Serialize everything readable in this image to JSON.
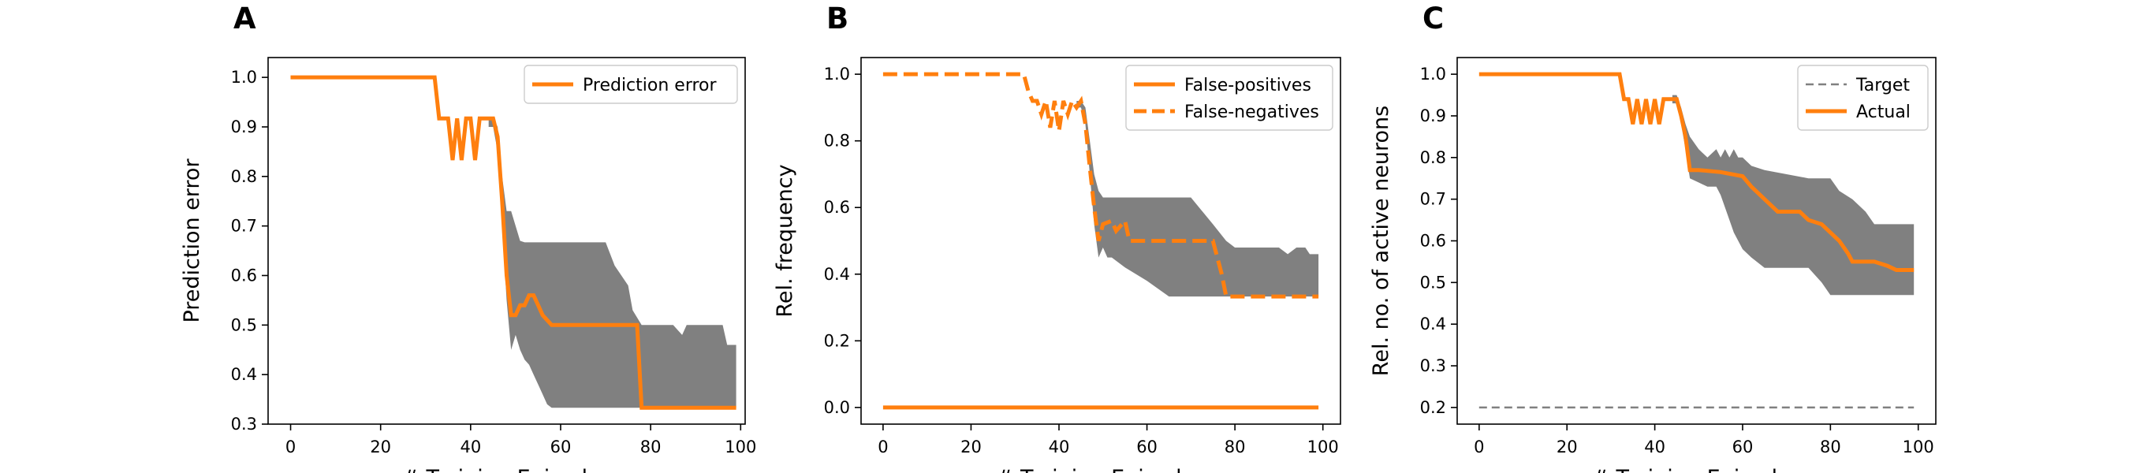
{
  "chart_data": [
    {
      "type": "line",
      "panel_label": "A",
      "xlabel": "# Training Episodes",
      "ylabel": "Prediction error",
      "xlim": [
        -5,
        101
      ],
      "ylim": [
        0.3,
        1.04
      ],
      "xticks": [
        0,
        20,
        40,
        60,
        80,
        100
      ],
      "xtick_labels": [
        "0",
        "20",
        "40",
        "60",
        "80",
        "100"
      ],
      "yticks": [
        0.3,
        0.4,
        0.5,
        0.6,
        0.7,
        0.8,
        0.9,
        1.0
      ],
      "ytick_labels": [
        "0.3",
        "0.4",
        "0.5",
        "0.6",
        "0.7",
        "0.8",
        "0.9",
        "1.0"
      ],
      "legend_position": "upper-right",
      "series": [
        {
          "name": "Prediction error",
          "kind": "line",
          "style": "solid",
          "x": [
            0,
            32,
            33,
            35,
            36,
            37,
            38,
            39,
            40,
            41,
            42,
            43,
            44,
            45,
            46,
            47,
            48,
            49,
            50,
            51,
            52,
            53,
            54,
            55,
            56,
            58,
            60,
            70,
            75,
            77,
            78,
            99
          ],
          "y": [
            1.0,
            1.0,
            0.917,
            0.917,
            0.833,
            0.917,
            0.833,
            0.917,
            0.917,
            0.833,
            0.917,
            0.917,
            0.917,
            0.917,
            0.88,
            0.75,
            0.6,
            0.52,
            0.52,
            0.54,
            0.54,
            0.56,
            0.56,
            0.54,
            0.52,
            0.5,
            0.5,
            0.5,
            0.5,
            0.5,
            0.333,
            0.333
          ]
        }
      ],
      "band": {
        "x": [
          44,
          45,
          46,
          47,
          48,
          49,
          50,
          51,
          52,
          53,
          54,
          55,
          56,
          57,
          58,
          60,
          62,
          65,
          70,
          72,
          75,
          76,
          78,
          80,
          85,
          87,
          88,
          90,
          92,
          94,
          96,
          97,
          98,
          99
        ],
        "upper": [
          0.92,
          0.92,
          0.9,
          0.8,
          0.73,
          0.73,
          0.7,
          0.67,
          0.667,
          0.667,
          0.667,
          0.667,
          0.667,
          0.667,
          0.667,
          0.667,
          0.667,
          0.667,
          0.667,
          0.62,
          0.58,
          0.53,
          0.5,
          0.5,
          0.5,
          0.48,
          0.5,
          0.5,
          0.5,
          0.5,
          0.5,
          0.46,
          0.46,
          0.46
        ],
        "lower": [
          0.9,
          0.9,
          0.85,
          0.7,
          0.55,
          0.45,
          0.48,
          0.45,
          0.43,
          0.42,
          0.4,
          0.38,
          0.36,
          0.34,
          0.333,
          0.333,
          0.333,
          0.333,
          0.333,
          0.333,
          0.333,
          0.333,
          0.333,
          0.333,
          0.333,
          0.333,
          0.333,
          0.333,
          0.333,
          0.333,
          0.333,
          0.333,
          0.333,
          0.333
        ]
      }
    },
    {
      "type": "line",
      "panel_label": "B",
      "xlabel": "# Training Episodes",
      "ylabel": "Rel. frequency",
      "xlim": [
        -5,
        104
      ],
      "ylim": [
        -0.05,
        1.05
      ],
      "xticks": [
        0,
        20,
        40,
        60,
        80,
        100
      ],
      "xtick_labels": [
        "0",
        "20",
        "40",
        "60",
        "80",
        "100"
      ],
      "yticks": [
        0.0,
        0.2,
        0.4,
        0.6,
        0.8,
        1.0
      ],
      "ytick_labels": [
        "0.0",
        "0.2",
        "0.4",
        "0.6",
        "0.8",
        "1.0"
      ],
      "legend_position": "upper-right",
      "series": [
        {
          "name": "False-positives",
          "kind": "line",
          "style": "solid",
          "x": [
            0,
            99
          ],
          "y": [
            0.0,
            0.0
          ]
        },
        {
          "name": "False-negatives",
          "kind": "line",
          "style": "dashed",
          "x": [
            0,
            32,
            33,
            34,
            35,
            36,
            37,
            38,
            39,
            40,
            41,
            42,
            43,
            44,
            45,
            46,
            47,
            48,
            49,
            50,
            52,
            53,
            55,
            56,
            60,
            70,
            75,
            77,
            78,
            80,
            85,
            90,
            95,
            99
          ],
          "y": [
            1.0,
            1.0,
            0.95,
            0.92,
            0.92,
            0.88,
            0.92,
            0.84,
            0.92,
            0.83,
            0.92,
            0.88,
            0.92,
            0.9,
            0.92,
            0.85,
            0.72,
            0.6,
            0.5,
            0.55,
            0.56,
            0.53,
            0.56,
            0.5,
            0.5,
            0.5,
            0.5,
            0.4,
            0.333,
            0.333,
            0.333,
            0.333,
            0.333,
            0.333
          ]
        }
      ],
      "band": {
        "x": [
          44,
          45,
          46,
          47,
          48,
          49,
          50,
          51,
          52,
          55,
          60,
          65,
          70,
          75,
          78,
          80,
          85,
          90,
          92,
          94,
          96,
          97,
          98,
          99
        ],
        "upper": [
          0.92,
          0.92,
          0.9,
          0.8,
          0.7,
          0.65,
          0.63,
          0.63,
          0.63,
          0.63,
          0.63,
          0.63,
          0.63,
          0.55,
          0.5,
          0.48,
          0.48,
          0.48,
          0.46,
          0.48,
          0.48,
          0.46,
          0.46,
          0.46
        ],
        "lower": [
          0.9,
          0.9,
          0.85,
          0.7,
          0.55,
          0.45,
          0.48,
          0.45,
          0.45,
          0.42,
          0.38,
          0.333,
          0.333,
          0.333,
          0.333,
          0.333,
          0.333,
          0.333,
          0.333,
          0.333,
          0.333,
          0.333,
          0.333,
          0.333
        ]
      }
    },
    {
      "type": "line",
      "panel_label": "C",
      "xlabel": "# Training Episodes",
      "ylabel": "Rel. no. of active neurons",
      "xlim": [
        -5,
        104
      ],
      "ylim": [
        0.16,
        1.04
      ],
      "xticks": [
        0,
        20,
        40,
        60,
        80,
        100
      ],
      "xtick_labels": [
        "0",
        "20",
        "40",
        "60",
        "80",
        "100"
      ],
      "yticks": [
        0.2,
        0.3,
        0.4,
        0.5,
        0.6,
        0.7,
        0.8,
        0.9,
        1.0
      ],
      "ytick_labels": [
        "0.2",
        "0.3",
        "0.4",
        "0.5",
        "0.6",
        "0.7",
        "0.8",
        "0.9",
        "1.0"
      ],
      "legend_position": "upper-right",
      "series": [
        {
          "name": "Target",
          "kind": "line",
          "style": "dashed",
          "x": [
            0,
            99
          ],
          "y": [
            0.2,
            0.2
          ]
        },
        {
          "name": "Actual",
          "kind": "line",
          "style": "solid",
          "x": [
            0,
            32,
            33,
            34,
            35,
            36,
            37,
            38,
            39,
            40,
            41,
            42,
            43,
            44,
            45,
            46,
            47,
            48,
            50,
            55,
            60,
            62,
            65,
            68,
            70,
            73,
            75,
            78,
            80,
            82,
            84,
            85,
            87,
            90,
            93,
            95,
            97,
            99
          ],
          "y": [
            1.0,
            1.0,
            0.94,
            0.94,
            0.88,
            0.94,
            0.88,
            0.94,
            0.88,
            0.94,
            0.88,
            0.94,
            0.94,
            0.94,
            0.94,
            0.9,
            0.85,
            0.77,
            0.77,
            0.765,
            0.755,
            0.73,
            0.7,
            0.67,
            0.67,
            0.67,
            0.65,
            0.64,
            0.62,
            0.6,
            0.57,
            0.55,
            0.55,
            0.55,
            0.54,
            0.53,
            0.53,
            0.53
          ]
        }
      ],
      "band": {
        "x": [
          44,
          45,
          46,
          47,
          48,
          50,
          52,
          54,
          55,
          56,
          57,
          58,
          59,
          60,
          62,
          65,
          70,
          75,
          78,
          80,
          82,
          85,
          88,
          90,
          92,
          94,
          96,
          98,
          99
        ],
        "upper": [
          0.95,
          0.95,
          0.92,
          0.88,
          0.85,
          0.82,
          0.8,
          0.82,
          0.8,
          0.82,
          0.8,
          0.82,
          0.8,
          0.8,
          0.78,
          0.77,
          0.76,
          0.75,
          0.75,
          0.75,
          0.72,
          0.7,
          0.67,
          0.64,
          0.64,
          0.64,
          0.64,
          0.64,
          0.64
        ],
        "lower": [
          0.93,
          0.93,
          0.88,
          0.82,
          0.75,
          0.74,
          0.73,
          0.73,
          0.71,
          0.68,
          0.65,
          0.62,
          0.6,
          0.58,
          0.56,
          0.535,
          0.535,
          0.535,
          0.5,
          0.47,
          0.47,
          0.47,
          0.47,
          0.47,
          0.47,
          0.47,
          0.47,
          0.47,
          0.47
        ]
      }
    }
  ],
  "colors": {
    "line": "#ff7f0e",
    "band": "#808080",
    "target": "#808080",
    "axis": "#000000"
  }
}
